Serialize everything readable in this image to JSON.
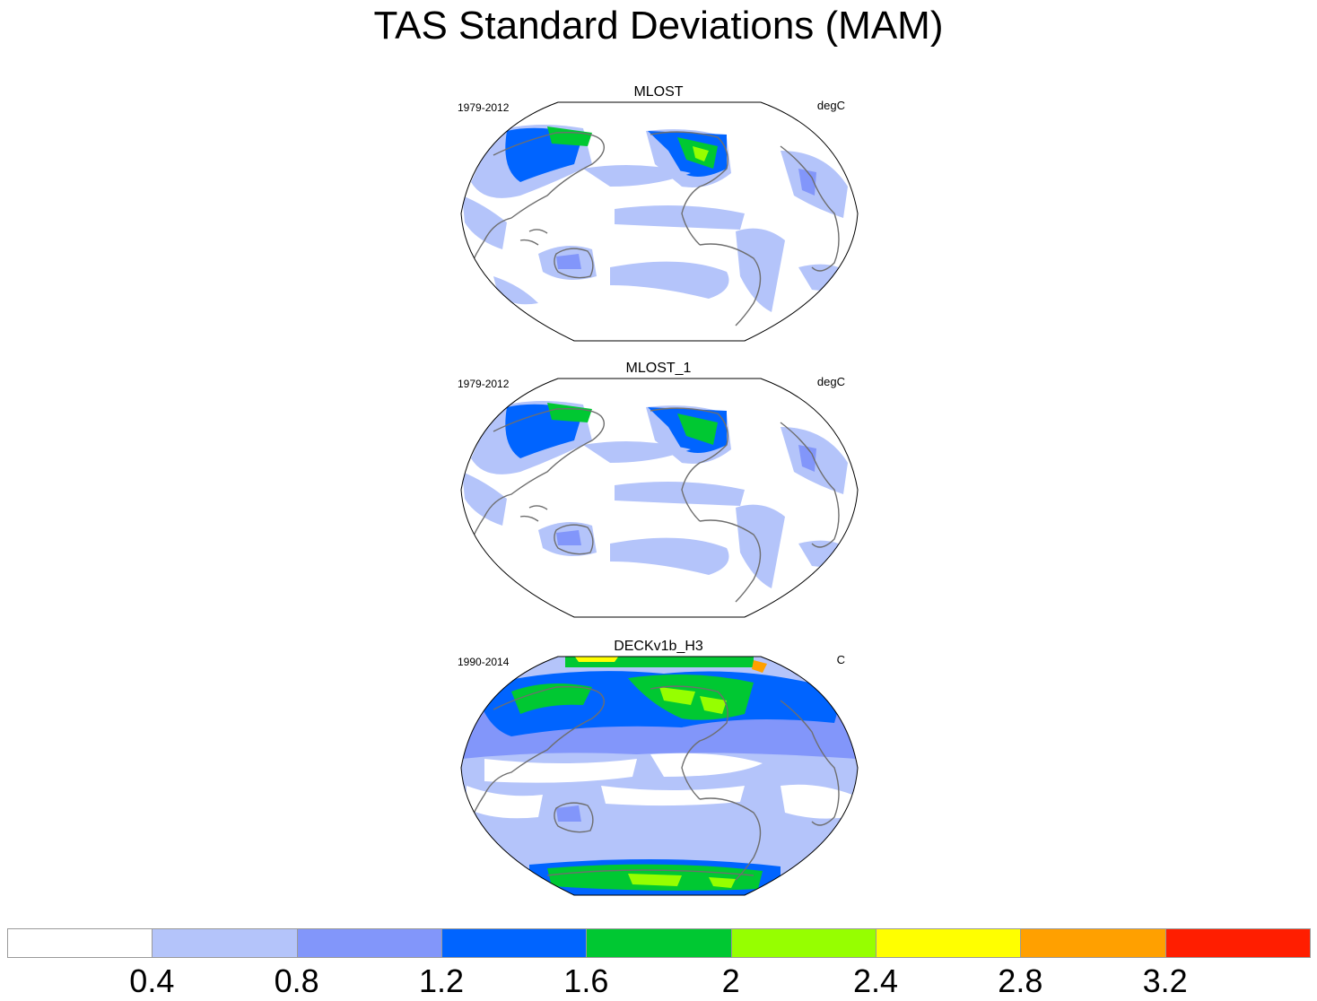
{
  "title": "TAS Standard Deviations (MAM)",
  "panels": [
    {
      "title": "MLOST",
      "period": "1979-2012",
      "units": "degC"
    },
    {
      "title": "MLOST_1",
      "period": "1979-2012",
      "units": "degC"
    },
    {
      "title": "DECKv1b_H3",
      "period": "1990-2014",
      "units": "C"
    }
  ],
  "colorbar": {
    "colors": [
      "#ffffff",
      "#b4c4fa",
      "#8296fa",
      "#0064ff",
      "#00c832",
      "#96ff00",
      "#ffff00",
      "#ffa000",
      "#ff1e00"
    ],
    "labels": [
      "0.4",
      "0.8",
      "1.2",
      "1.6",
      "2",
      "2.4",
      "2.8",
      "3.2"
    ]
  }
}
